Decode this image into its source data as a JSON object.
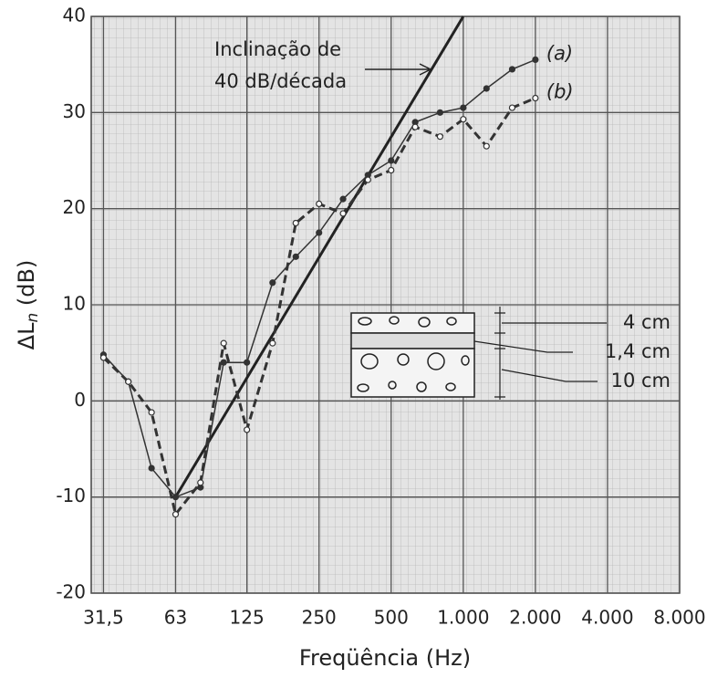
{
  "chart_data": {
    "type": "line",
    "xlabel": "Freqüência (Hz)",
    "ylabel": [
      "ΔL",
      "n",
      " (dB)"
    ],
    "x": [
      31.5,
      40,
      50,
      63,
      80,
      100,
      125,
      160,
      200,
      250,
      315,
      400,
      500,
      630,
      800,
      1000,
      1250,
      1600,
      2000
    ],
    "series": [
      {
        "name": "(a)",
        "color": "#333333",
        "dashed": false,
        "filled": true,
        "values": [
          4.8,
          2,
          -7,
          -10,
          -9,
          4,
          4,
          12.3,
          15,
          17.5,
          21,
          23.5,
          25,
          29,
          30,
          30.5,
          32.5,
          34.5,
          35.5
        ]
      },
      {
        "name": "(b)",
        "color": "#333333",
        "dashed": true,
        "filled": false,
        "values": [
          4.5,
          2,
          -1.2,
          -11.8,
          -8.5,
          6,
          -3,
          6,
          18.5,
          20.5,
          19.5,
          23,
          24,
          28.5,
          27.5,
          29.3,
          26.5,
          30.5,
          31.5
        ]
      }
    ],
    "reference_line": {
      "x": [
        63,
        1000
      ],
      "values": [
        -10,
        40
      ],
      "color": "#222222"
    },
    "annotations": [
      "Inclinação de",
      "40 dB/década",
      "4 cm",
      "1,4 cm",
      "10 cm"
    ],
    "xscale": "log",
    "xlim": [
      28,
      8000
    ],
    "xticks": [
      {
        "value": 31.5,
        "label": "31,5"
      },
      63,
      125,
      250,
      500,
      {
        "value": 1000,
        "label": "1.000"
      },
      {
        "value": 2000,
        "label": "2.000"
      },
      {
        "value": 4000,
        "label": "4.000"
      },
      {
        "value": 8000,
        "label": "8.000"
      }
    ],
    "ylim": [
      -20,
      40
    ],
    "yticks": [
      -20,
      -10,
      0,
      10,
      20,
      30,
      40
    ],
    "grid": true
  }
}
